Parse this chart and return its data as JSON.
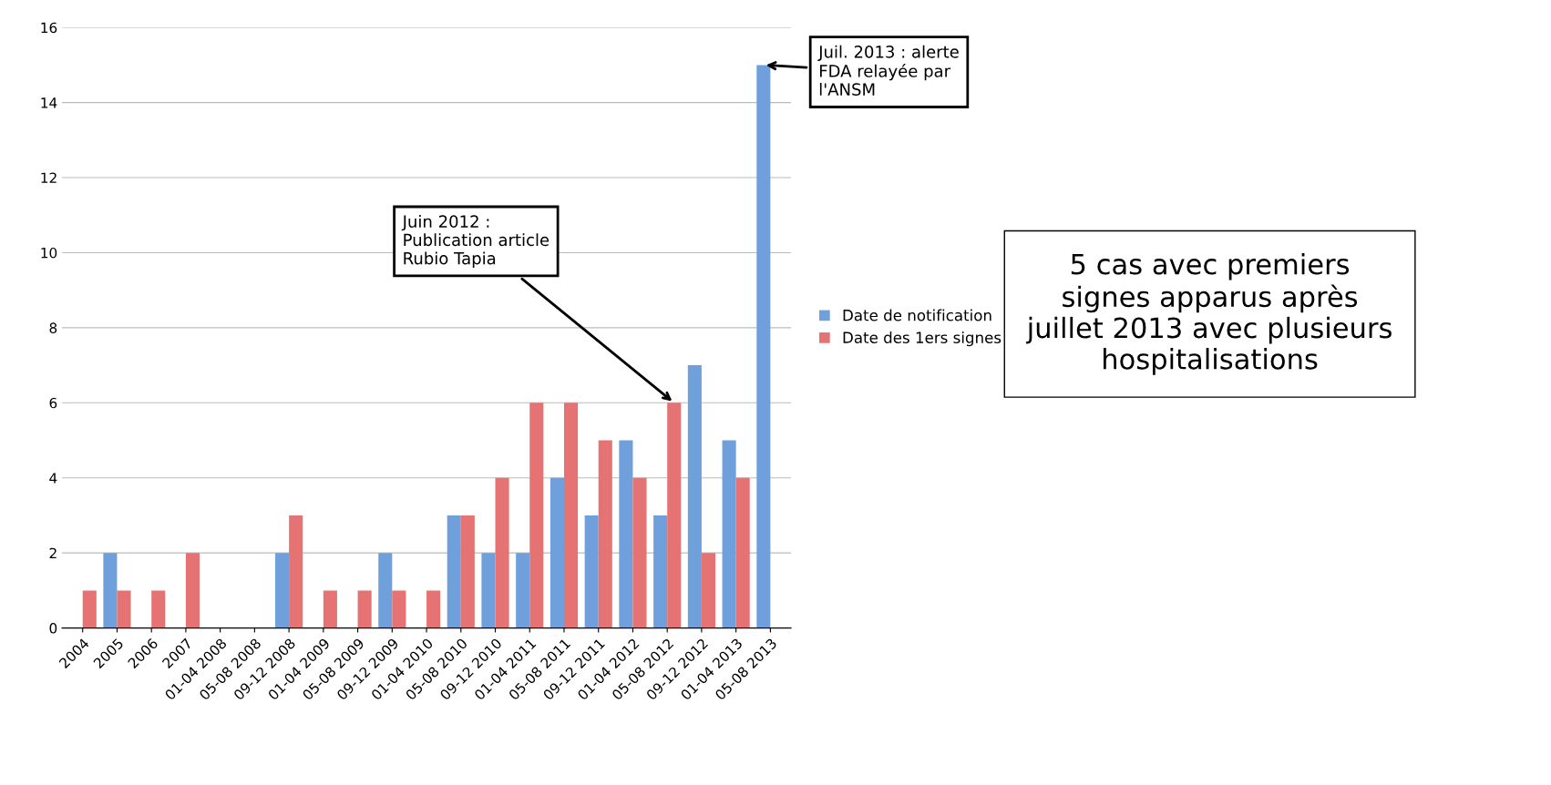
{
  "chart_data": {
    "type": "bar",
    "categories": [
      "2004",
      "2005",
      "2006",
      "2007",
      "01-04 2008",
      "05-08 2008",
      "09-12 2008",
      "01-04 2009",
      "05-08 2009",
      "09-12 2009",
      "01-04 2010",
      "05-08 2010",
      "09-12 2010",
      "01-04 2011",
      "05-08 2011",
      "09-12 2011",
      "01-04 2012",
      "05-08 2012",
      "09-12 2012",
      "01-04 2013",
      "05-08 2013"
    ],
    "series": [
      {
        "name": "Date de notification",
        "color": "#6fa0dc",
        "values": [
          0,
          2,
          0,
          0,
          0,
          0,
          2,
          0,
          0,
          2,
          0,
          3,
          2,
          2,
          4,
          3,
          5,
          3,
          7,
          5,
          15
        ]
      },
      {
        "name": "Date des 1ers signes",
        "color": "#e57373",
        "values": [
          1,
          1,
          1,
          2,
          0,
          0,
          3,
          1,
          1,
          1,
          1,
          3,
          4,
          6,
          6,
          5,
          4,
          6,
          2,
          4,
          0
        ]
      }
    ],
    "ylim": [
      0,
      16
    ],
    "yticks": [
      0,
      2,
      4,
      6,
      8,
      10,
      12,
      14,
      16
    ],
    "grid": "y",
    "legend": "right",
    "annotations": [
      {
        "text": "Juil. 2013 : alerte\nFDA relayée par\nl'ANSM",
        "x": "05-08 2013",
        "y": 15
      },
      {
        "text": "Juin 2012 :\nPublication article\nRubio Tapia",
        "x": "05-08 2012",
        "y": 6
      },
      "5 cas avec premiers\nsignes apparus après\njuillet 2013 avec plusieurs\nhospitalisations"
    ]
  }
}
